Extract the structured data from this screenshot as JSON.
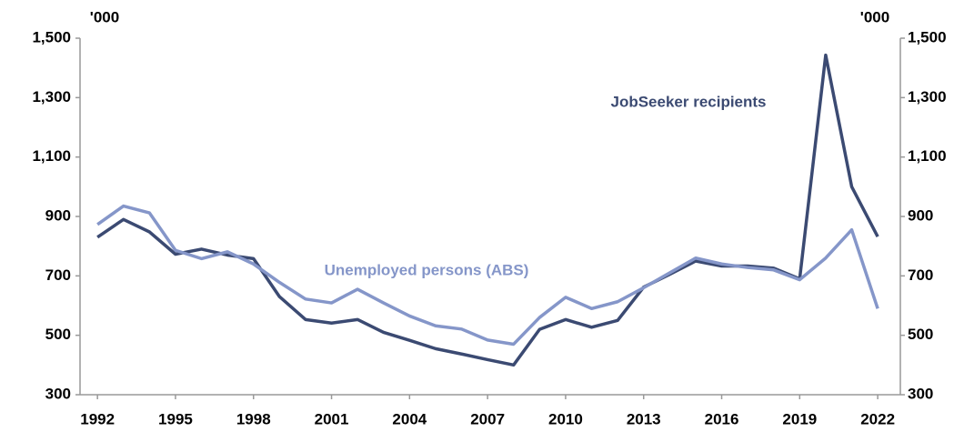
{
  "chart_data": {
    "type": "line",
    "x": [
      1992,
      1993,
      1994,
      1995,
      1996,
      1997,
      1998,
      1999,
      2000,
      2001,
      2002,
      2003,
      2004,
      2005,
      2006,
      2007,
      2008,
      2009,
      2010,
      2011,
      2012,
      2013,
      2014,
      2015,
      2016,
      2017,
      2018,
      2019,
      2020,
      2021,
      2022
    ],
    "xlim": [
      1991.33,
      2022.87
    ],
    "xticks": [
      1992,
      1995,
      1998,
      2001,
      2004,
      2007,
      2010,
      2013,
      2016,
      2019,
      2022
    ],
    "ylim": [
      300,
      1500
    ],
    "yticks": [
      300,
      500,
      700,
      900,
      {
        "value": 1100,
        "label": "1,100"
      },
      {
        "value": 1300,
        "label": "1,300"
      },
      {
        "value": 1500,
        "label": "1,500"
      }
    ],
    "y2lim": [
      300,
      1500
    ],
    "y2ticks": [
      300,
      500,
      700,
      900,
      {
        "value": 1100,
        "label": "1,100"
      },
      {
        "value": 1300,
        "label": "1,300"
      },
      {
        "value": 1500,
        "label": "1,500"
      }
    ],
    "ylabel": "'000",
    "y2label": "'000",
    "grid": false,
    "series": [
      {
        "name": "JobSeeker recipients",
        "color": "#3b4a72",
        "values": [
          830,
          890,
          848,
          773,
          790,
          770,
          758,
          630,
          553,
          541,
          553,
          510,
          483,
          455,
          437,
          418,
          400,
          520,
          553,
          527,
          550,
          662,
          705,
          750,
          733,
          733,
          726,
          690,
          1443,
          1000,
          832
        ]
      },
      {
        "name": "Unemployed persons (ABS)",
        "color": "#8596c9",
        "values": [
          873,
          935,
          912,
          786,
          758,
          781,
          740,
          678,
          622,
          609,
          655,
          609,
          565,
          532,
          521,
          484,
          470,
          560,
          628,
          590,
          613,
          660,
          710,
          760,
          740,
          728,
          720,
          687,
          760,
          855,
          590
        ]
      }
    ]
  }
}
